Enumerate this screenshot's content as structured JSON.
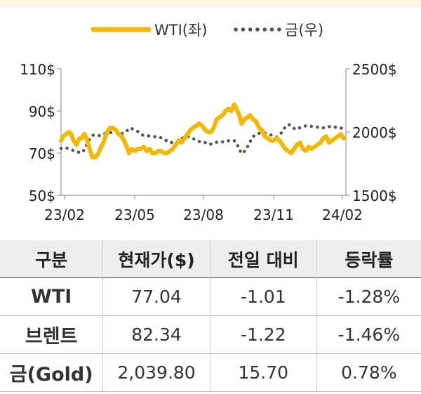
{
  "chart_data": {
    "type": "line",
    "legend_position": "top-center",
    "grid": false,
    "x_ticks": [
      "23/02",
      "23/05",
      "23/08",
      "23/11",
      "24/02"
    ],
    "left_ticks": [
      "110$",
      "90$",
      "70$",
      "50$"
    ],
    "right_ticks": [
      "2500$",
      "2000$",
      "1500$"
    ],
    "ylim_left": [
      50,
      110
    ],
    "ylim_right": [
      1500,
      2500
    ],
    "series": [
      {
        "name": "WTI(좌)",
        "axis": "left",
        "color": "#F5B800",
        "style": "solid",
        "points": [
          [
            "2023-02-01",
            76
          ],
          [
            "2023-02-04",
            78
          ],
          [
            "2023-02-08",
            79
          ],
          [
            "2023-02-12",
            80
          ],
          [
            "2023-02-15",
            79
          ],
          [
            "2023-02-18",
            76
          ],
          [
            "2023-02-22",
            74
          ],
          [
            "2023-02-26",
            77
          ],
          [
            "2023-03-01",
            77
          ],
          [
            "2023-03-05",
            79
          ],
          [
            "2023-03-08",
            77
          ],
          [
            "2023-03-12",
            72
          ],
          [
            "2023-03-16",
            68
          ],
          [
            "2023-03-20",
            68
          ],
          [
            "2023-03-24",
            70
          ],
          [
            "2023-03-28",
            73
          ],
          [
            "2023-04-01",
            76
          ],
          [
            "2023-04-05",
            80
          ],
          [
            "2023-04-09",
            82
          ],
          [
            "2023-04-13",
            82
          ],
          [
            "2023-04-17",
            81
          ],
          [
            "2023-04-21",
            79
          ],
          [
            "2023-04-25",
            78
          ],
          [
            "2023-04-28",
            76
          ],
          [
            "2023-05-02",
            73
          ],
          [
            "2023-05-05",
            70
          ],
          [
            "2023-05-09",
            72
          ],
          [
            "2023-05-13",
            71
          ],
          [
            "2023-05-17",
            72
          ],
          [
            "2023-05-21",
            72
          ],
          [
            "2023-05-25",
            73
          ],
          [
            "2023-05-29",
            71
          ],
          [
            "2023-06-02",
            72
          ],
          [
            "2023-06-06",
            70
          ],
          [
            "2023-06-10",
            70
          ],
          [
            "2023-06-14",
            71
          ],
          [
            "2023-06-18",
            71
          ],
          [
            "2023-06-22",
            70
          ],
          [
            "2023-06-26",
            70
          ],
          [
            "2023-06-30",
            71
          ],
          [
            "2023-07-04",
            72
          ],
          [
            "2023-07-08",
            74
          ],
          [
            "2023-07-12",
            76
          ],
          [
            "2023-07-16",
            75
          ],
          [
            "2023-07-20",
            77
          ],
          [
            "2023-07-24",
            79
          ],
          [
            "2023-07-28",
            81
          ],
          [
            "2023-08-01",
            82
          ],
          [
            "2023-08-05",
            83
          ],
          [
            "2023-08-09",
            84
          ],
          [
            "2023-08-13",
            83
          ],
          [
            "2023-08-17",
            81
          ],
          [
            "2023-08-21",
            80
          ],
          [
            "2023-08-25",
            80
          ],
          [
            "2023-08-29",
            82
          ],
          [
            "2023-09-02",
            86
          ],
          [
            "2023-09-06",
            87
          ],
          [
            "2023-09-10",
            88
          ],
          [
            "2023-09-14",
            90
          ],
          [
            "2023-09-18",
            91
          ],
          [
            "2023-09-22",
            90
          ],
          [
            "2023-09-26",
            93
          ],
          [
            "2023-09-29",
            91
          ],
          [
            "2023-10-03",
            88
          ],
          [
            "2023-10-06",
            84
          ],
          [
            "2023-10-10",
            86
          ],
          [
            "2023-10-14",
            87
          ],
          [
            "2023-10-18",
            88
          ],
          [
            "2023-10-22",
            86
          ],
          [
            "2023-10-26",
            85
          ],
          [
            "2023-10-30",
            82
          ],
          [
            "2023-11-03",
            81
          ],
          [
            "2023-11-07",
            78
          ],
          [
            "2023-11-11",
            77
          ],
          [
            "2023-11-15",
            76
          ],
          [
            "2023-11-19",
            76
          ],
          [
            "2023-11-23",
            77
          ],
          [
            "2023-11-27",
            76
          ],
          [
            "2023-12-01",
            74
          ],
          [
            "2023-12-05",
            72
          ],
          [
            "2023-12-09",
            71
          ],
          [
            "2023-12-13",
            70
          ],
          [
            "2023-12-17",
            72
          ],
          [
            "2023-12-21",
            74
          ],
          [
            "2023-12-25",
            75
          ],
          [
            "2023-12-29",
            72
          ],
          [
            "2024-01-02",
            71
          ],
          [
            "2024-01-06",
            73
          ],
          [
            "2024-01-10",
            72
          ],
          [
            "2024-01-14",
            73
          ],
          [
            "2024-01-18",
            74
          ],
          [
            "2024-01-22",
            75
          ],
          [
            "2024-01-26",
            77
          ],
          [
            "2024-01-30",
            78
          ],
          [
            "2024-02-03",
            75
          ],
          [
            "2024-02-07",
            76
          ],
          [
            "2024-02-11",
            77
          ],
          [
            "2024-02-15",
            78
          ],
          [
            "2024-02-19",
            79
          ],
          [
            "2024-02-23",
            77
          ]
        ]
      },
      {
        "name": "금(우)",
        "axis": "right",
        "color": "#5A5048",
        "style": "dotted",
        "points": [
          [
            "2023-02-01",
            1870
          ],
          [
            "2023-02-08",
            1875
          ],
          [
            "2023-02-15",
            1860
          ],
          [
            "2023-02-22",
            1845
          ],
          [
            "2023-03-01",
            1835
          ],
          [
            "2023-03-05",
            1860
          ],
          [
            "2023-03-09",
            1915
          ],
          [
            "2023-03-13",
            1950
          ],
          [
            "2023-03-17",
            1975
          ],
          [
            "2023-03-21",
            1975
          ],
          [
            "2023-03-27",
            1970
          ],
          [
            "2023-04-03",
            1990
          ],
          [
            "2023-04-10",
            1995
          ],
          [
            "2023-04-17",
            2005
          ],
          [
            "2023-04-24",
            1985
          ],
          [
            "2023-05-01",
            2000
          ],
          [
            "2023-05-05",
            2030
          ],
          [
            "2023-05-10",
            2025
          ],
          [
            "2023-05-17",
            2005
          ],
          [
            "2023-05-24",
            1975
          ],
          [
            "2023-05-31",
            1970
          ],
          [
            "2023-06-07",
            1965
          ],
          [
            "2023-06-14",
            1960
          ],
          [
            "2023-06-21",
            1950
          ],
          [
            "2023-06-28",
            1920
          ],
          [
            "2023-07-05",
            1915
          ],
          [
            "2023-07-12",
            1930
          ],
          [
            "2023-07-19",
            1960
          ],
          [
            "2023-07-26",
            1965
          ],
          [
            "2023-08-02",
            1945
          ],
          [
            "2023-08-09",
            1925
          ],
          [
            "2023-08-16",
            1920
          ],
          [
            "2023-08-23",
            1900
          ],
          [
            "2023-08-30",
            1915
          ],
          [
            "2023-09-06",
            1925
          ],
          [
            "2023-09-13",
            1920
          ],
          [
            "2023-09-20",
            1935
          ],
          [
            "2023-09-27",
            1930
          ],
          [
            "2023-10-02",
            1880
          ],
          [
            "2023-10-06",
            1830
          ],
          [
            "2023-10-11",
            1850
          ],
          [
            "2023-10-16",
            1900
          ],
          [
            "2023-10-21",
            1960
          ],
          [
            "2023-10-27",
            1985
          ],
          [
            "2023-11-02",
            1995
          ],
          [
            "2023-11-09",
            1990
          ],
          [
            "2023-11-16",
            1975
          ],
          [
            "2023-11-23",
            1960
          ],
          [
            "2023-11-30",
            1995
          ],
          [
            "2023-12-05",
            2040
          ],
          [
            "2023-12-10",
            2060
          ],
          [
            "2023-12-15",
            2035
          ],
          [
            "2023-12-20",
            2020
          ],
          [
            "2023-12-27",
            2040
          ],
          [
            "2024-01-03",
            2050
          ],
          [
            "2024-01-10",
            2045
          ],
          [
            "2024-01-17",
            2040
          ],
          [
            "2024-01-24",
            2030
          ],
          [
            "2024-01-31",
            2040
          ],
          [
            "2024-02-07",
            2045
          ],
          [
            "2024-02-14",
            2035
          ],
          [
            "2024-02-21",
            2030
          ],
          [
            "2024-02-26",
            2010
          ]
        ]
      }
    ]
  },
  "table": {
    "headers": [
      "구분",
      "현재가($)",
      "전일 대비",
      "등락률"
    ],
    "rows": [
      [
        "WTI",
        "77.04",
        "-1.01",
        "-1.28%"
      ],
      [
        "브렌트",
        "82.34",
        "-1.22",
        "-1.46%"
      ],
      [
        "금(Gold)",
        "2,039.80",
        "15.70",
        "0.78%"
      ]
    ]
  }
}
